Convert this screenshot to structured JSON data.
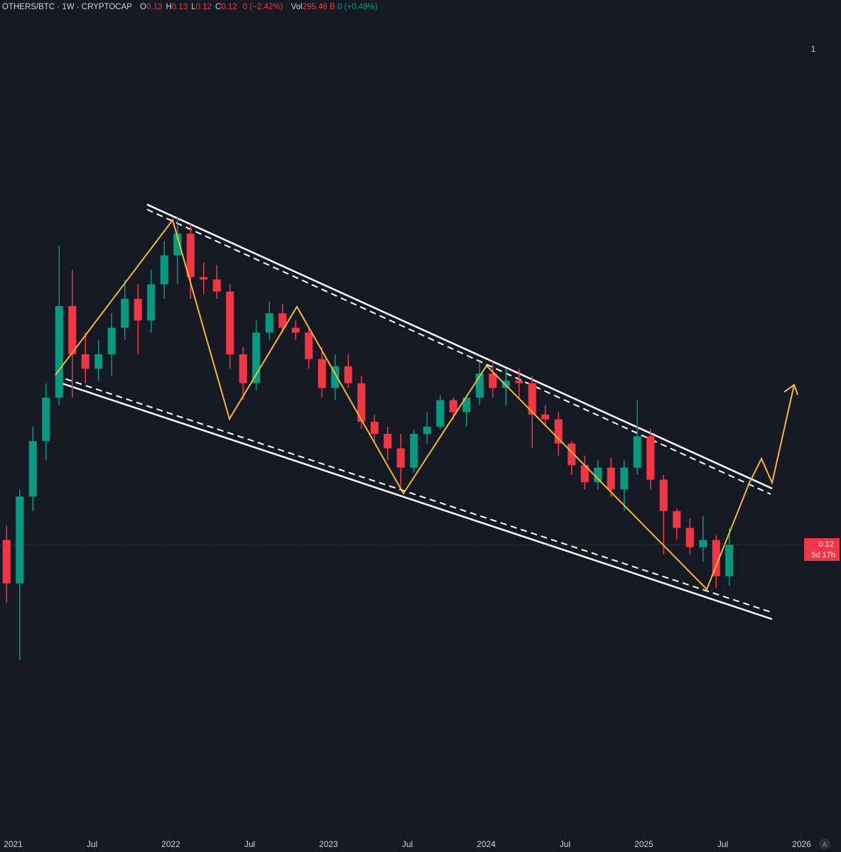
{
  "chart_data": {
    "type": "candlestick",
    "symbol": "OTHERS/BTC · 1W · CRYPTOCAP",
    "ohlc_header": [
      {
        "label": "O",
        "value": 0.13
      },
      {
        "label": "H",
        "value": 0.13
      },
      {
        "label": "L",
        "value": 0.12
      },
      {
        "label": "C",
        "value": 0.12
      }
    ],
    "change": "0 (−2.42%)",
    "volume_label": "Vol",
    "volume": "295.46 B",
    "volume_change": "0 (+0.49%)",
    "pane_number": "1",
    "last_price": 0.12,
    "countdown": "5d 17h",
    "scale_mode": "A",
    "up_color": "#089981",
    "down_color": "#f23645",
    "xlim": [
      "2020-12",
      "2026-04"
    ],
    "ylim": [
      0.005,
      0.34
    ],
    "xticks": [
      {
        "value": "2021-01",
        "label": "2021"
      },
      {
        "value": "2021-07",
        "label": "Jul"
      },
      {
        "value": "2022-01",
        "label": "2022"
      },
      {
        "value": "2022-07",
        "label": "Jul"
      },
      {
        "value": "2023-01",
        "label": "2023"
      },
      {
        "value": "2023-07",
        "label": "Jul"
      },
      {
        "value": "2024-01",
        "label": "2024"
      },
      {
        "value": "2024-07",
        "label": "Jul"
      },
      {
        "value": "2025-01",
        "label": "2025"
      },
      {
        "value": "2025-07",
        "label": "Jul"
      },
      {
        "value": "2026-01",
        "label": "2026"
      }
    ],
    "x": [
      "2020-12",
      "2021-01",
      "2021-02",
      "2021-03",
      "2021-04",
      "2021-05",
      "2021-06",
      "2021-07",
      "2021-08",
      "2021-09",
      "2021-10",
      "2021-11",
      "2021-12",
      "2022-01",
      "2022-02",
      "2022-03",
      "2022-04",
      "2022-05",
      "2022-06",
      "2022-07",
      "2022-08",
      "2022-09",
      "2022-10",
      "2022-11",
      "2022-12",
      "2023-01",
      "2023-02",
      "2023-03",
      "2023-04",
      "2023-05",
      "2023-06",
      "2023-07",
      "2023-08",
      "2023-09",
      "2023-10",
      "2023-11",
      "2023-12",
      "2024-01",
      "2024-02",
      "2024-03",
      "2024-04",
      "2024-05",
      "2024-06",
      "2024-07",
      "2024-08",
      "2024-09",
      "2024-10",
      "2024-11",
      "2024-12",
      "2025-01",
      "2025-02",
      "2025-03",
      "2025-04",
      "2025-05",
      "2025-06",
      "2025-07"
    ],
    "open": [
      0.122,
      0.104,
      0.14,
      0.163,
      0.181,
      0.219,
      0.199,
      0.193,
      0.199,
      0.21,
      0.222,
      0.213,
      0.228,
      0.24,
      0.249,
      0.231,
      0.23,
      0.225,
      0.199,
      0.187,
      0.208,
      0.216,
      0.21,
      0.208,
      0.197,
      0.185,
      0.194,
      0.187,
      0.171,
      0.166,
      0.16,
      0.152,
      0.166,
      0.169,
      0.18,
      0.175,
      0.181,
      0.191,
      0.185,
      0.188,
      0.187,
      0.174,
      0.172,
      0.162,
      0.153,
      0.146,
      0.152,
      0.143,
      0.152,
      0.165,
      0.147,
      0.134,
      0.127,
      0.119,
      0.122,
      0.107
    ],
    "high": [
      0.128,
      0.143,
      0.169,
      0.187,
      0.244,
      0.234,
      0.208,
      0.205,
      0.216,
      0.23,
      0.228,
      0.234,
      0.246,
      0.256,
      0.253,
      0.237,
      0.236,
      0.228,
      0.202,
      0.213,
      0.221,
      0.22,
      0.213,
      0.21,
      0.202,
      0.199,
      0.199,
      0.19,
      0.174,
      0.169,
      0.166,
      0.168,
      0.175,
      0.182,
      0.181,
      0.182,
      0.196,
      0.196,
      0.193,
      0.193,
      0.19,
      0.178,
      0.175,
      0.163,
      0.157,
      0.155,
      0.156,
      0.155,
      0.18,
      0.168,
      0.149,
      0.135,
      0.131,
      0.132,
      0.124,
      0.127
    ],
    "low": [
      0.096,
      0.072,
      0.134,
      0.155,
      0.178,
      0.181,
      0.187,
      0.188,
      0.19,
      0.205,
      0.199,
      0.208,
      0.222,
      0.228,
      0.222,
      0.224,
      0.222,
      0.193,
      0.18,
      0.184,
      0.205,
      0.208,
      0.205,
      0.193,
      0.181,
      0.18,
      0.185,
      0.168,
      0.162,
      0.155,
      0.144,
      0.15,
      0.162,
      0.168,
      0.172,
      0.169,
      0.178,
      0.181,
      0.178,
      0.181,
      0.16,
      0.169,
      0.157,
      0.149,
      0.143,
      0.143,
      0.14,
      0.134,
      0.149,
      0.143,
      0.116,
      0.122,
      0.116,
      0.113,
      0.102,
      0.103
    ],
    "close": [
      0.104,
      0.14,
      0.163,
      0.181,
      0.219,
      0.199,
      0.193,
      0.199,
      0.21,
      0.222,
      0.213,
      0.228,
      0.24,
      0.249,
      0.231,
      0.23,
      0.225,
      0.199,
      0.187,
      0.208,
      0.216,
      0.21,
      0.208,
      0.197,
      0.185,
      0.194,
      0.187,
      0.171,
      0.166,
      0.16,
      0.152,
      0.166,
      0.169,
      0.18,
      0.175,
      0.181,
      0.191,
      0.185,
      0.188,
      0.187,
      0.174,
      0.172,
      0.162,
      0.153,
      0.146,
      0.152,
      0.143,
      0.152,
      0.165,
      0.147,
      0.134,
      0.127,
      0.119,
      0.122,
      0.107,
      0.12
    ]
  }
}
